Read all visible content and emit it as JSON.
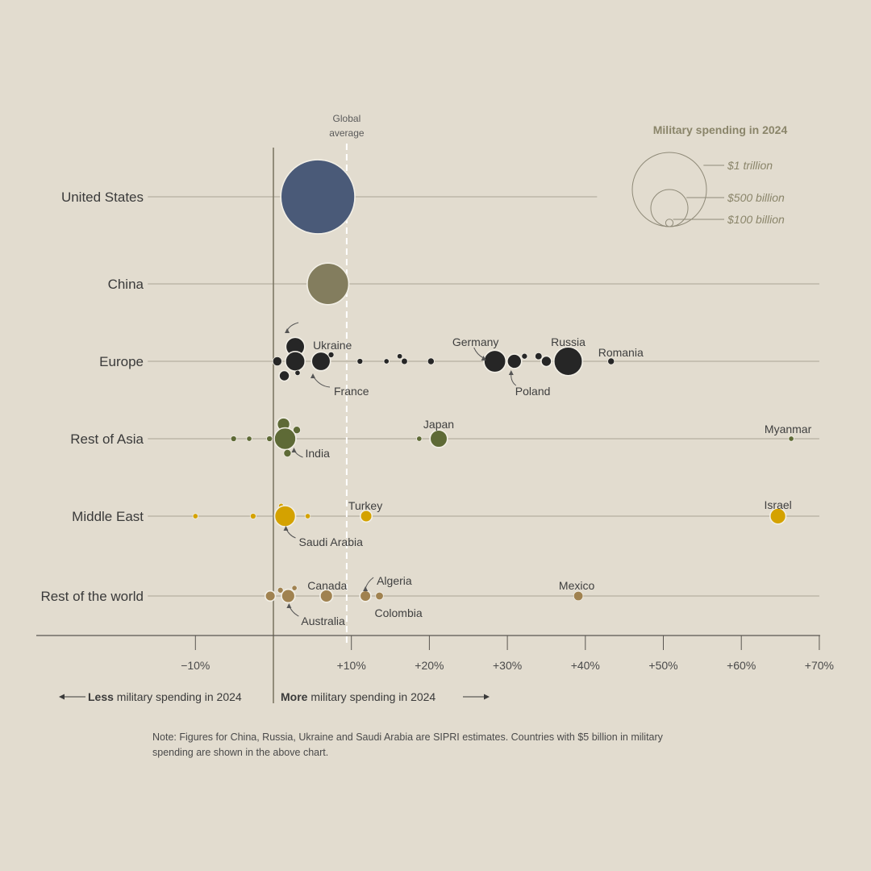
{
  "chart_data": {
    "type": "scatter",
    "title": "",
    "xlabel": "",
    "ylabel": "",
    "xlim": [
      -20,
      70
    ],
    "x_ticks": [
      -10,
      10,
      20,
      30,
      40,
      50,
      60,
      70
    ],
    "x_tick_labels": [
      "−10%",
      "+10%",
      "+20%",
      "+30%",
      "+40%",
      "+50%",
      "+60%",
      "+70%"
    ],
    "reference_line": {
      "x": 9.4,
      "label_line1": "Global",
      "label_line2": "average"
    },
    "regions": [
      {
        "name": "United States",
        "color": "#4a5a78",
        "line_extent": [
          -16,
          41.5
        ],
        "points": [
          {
            "x": 5.7,
            "spend": 997,
            "offset": 0,
            "label": ""
          }
        ]
      },
      {
        "name": "China",
        "color": "#837d5e",
        "line_extent": [
          -16,
          70
        ],
        "points": [
          {
            "x": 7.0,
            "spend": 314,
            "offset": 0,
            "label": ""
          }
        ]
      },
      {
        "name": "Europe",
        "color": "#262626",
        "line_extent": [
          -16,
          70
        ],
        "points": [
          {
            "x": 0.5,
            "spend": 15,
            "offset": 0,
            "label": ""
          },
          {
            "x": 2.8,
            "spend": 65,
            "offset": -1,
            "label": "Ukraine"
          },
          {
            "x": 2.8,
            "spend": 70,
            "offset": 0,
            "label": ""
          },
          {
            "x": 1.4,
            "spend": 20,
            "offset": 1,
            "label": ""
          },
          {
            "x": 3.1,
            "spend": 5,
            "offset": 0.8,
            "label": ""
          },
          {
            "x": 6.1,
            "spend": 65,
            "offset": 0,
            "label": "France"
          },
          {
            "x": 7.4,
            "spend": 6,
            "offset": -0.45,
            "label": ""
          },
          {
            "x": 11.1,
            "spend": 6,
            "offset": 0,
            "label": ""
          },
          {
            "x": 14.5,
            "spend": 5,
            "offset": 0,
            "label": ""
          },
          {
            "x": 16.2,
            "spend": 5,
            "offset": -0.35,
            "label": ""
          },
          {
            "x": 16.8,
            "spend": 7,
            "offset": 0,
            "label": ""
          },
          {
            "x": 20.2,
            "spend": 8,
            "offset": 0,
            "label": ""
          },
          {
            "x": 28.4,
            "spend": 88,
            "offset": 0,
            "label": "Germany"
          },
          {
            "x": 30.9,
            "spend": 38,
            "offset": 0,
            "label": "Poland"
          },
          {
            "x": 32.2,
            "spend": 6,
            "offset": -0.35,
            "label": ""
          },
          {
            "x": 34.0,
            "spend": 9,
            "offset": -0.35,
            "label": ""
          },
          {
            "x": 35.0,
            "spend": 20,
            "offset": 0,
            "label": ""
          },
          {
            "x": 37.8,
            "spend": 149,
            "offset": 0,
            "label": "Russia"
          },
          {
            "x": 43.3,
            "spend": 8,
            "offset": 0,
            "label": "Romania"
          }
        ]
      },
      {
        "name": "Rest of Asia",
        "color": "#5e6a36",
        "line_extent": [
          -16,
          70
        ],
        "points": [
          {
            "x": -5.1,
            "spend": 6,
            "offset": 0,
            "label": ""
          },
          {
            "x": -3.1,
            "spend": 5,
            "offset": 0,
            "label": ""
          },
          {
            "x": -0.5,
            "spend": 6,
            "offset": 0,
            "label": ""
          },
          {
            "x": 1.3,
            "spend": 30,
            "offset": -1,
            "label": ""
          },
          {
            "x": 3.0,
            "spend": 10,
            "offset": -0.6,
            "label": ""
          },
          {
            "x": 1.5,
            "spend": 86,
            "offset": 0,
            "label": "India"
          },
          {
            "x": 1.8,
            "spend": 10,
            "offset": 1,
            "label": ""
          },
          {
            "x": 18.7,
            "spend": 5,
            "offset": 0,
            "label": ""
          },
          {
            "x": 21.2,
            "spend": 55,
            "offset": 0,
            "label": "Japan"
          },
          {
            "x": 66.4,
            "spend": 5,
            "offset": 0,
            "label": "Myanmar"
          }
        ]
      },
      {
        "name": "Middle East",
        "color": "#d4a200",
        "line_extent": [
          -16,
          70
        ],
        "points": [
          {
            "x": -10.0,
            "spend": 5,
            "offset": 0,
            "label": ""
          },
          {
            "x": -2.6,
            "spend": 6,
            "offset": 0,
            "label": ""
          },
          {
            "x": 1.0,
            "spend": 5,
            "offset": -0.7,
            "label": ""
          },
          {
            "x": 1.5,
            "spend": 80,
            "offset": 0,
            "label": "Saudi Arabia"
          },
          {
            "x": 4.4,
            "spend": 5,
            "offset": 0,
            "label": ""
          },
          {
            "x": 11.9,
            "spend": 25,
            "offset": 0,
            "label": "Turkey"
          },
          {
            "x": 64.7,
            "spend": 46,
            "offset": 0,
            "label": "Israel"
          }
        ]
      },
      {
        "name": "Rest of the world",
        "color": "#a08250",
        "line_extent": [
          -16,
          70
        ],
        "points": [
          {
            "x": -0.4,
            "spend": 19,
            "offset": 0,
            "label": ""
          },
          {
            "x": 0.9,
            "spend": 6,
            "offset": -0.4,
            "label": ""
          },
          {
            "x": 1.9,
            "spend": 33,
            "offset": 0,
            "label": "Australia"
          },
          {
            "x": 2.7,
            "spend": 5,
            "offset": -0.55,
            "label": ""
          },
          {
            "x": 6.8,
            "spend": 29,
            "offset": 0,
            "label": "Canada"
          },
          {
            "x": 11.8,
            "spend": 22,
            "offset": 0,
            "label": "Algeria"
          },
          {
            "x": 13.6,
            "spend": 11,
            "offset": 0,
            "label": "Colombia"
          },
          {
            "x": 39.1,
            "spend": 16,
            "offset": 0,
            "label": "Mexico"
          }
        ]
      }
    ],
    "legend": {
      "title": "Military spending in 2024",
      "items": [
        {
          "label": "$1 trillion",
          "value": 1000
        },
        {
          "label": "$500 billion",
          "value": 250
        },
        {
          "label": "$100 billion",
          "value": 10
        }
      ]
    },
    "direction": {
      "less_bold": "Less",
      "less_rest": " military spending in 2024",
      "more_bold": "More",
      "more_rest": " military spending in 2024"
    }
  },
  "note": "Note: Figures for China, Russia, Ukraine and Saudi Arabia are SIPRI estimates. Countries with $5 billion in military spending are shown in the above chart."
}
